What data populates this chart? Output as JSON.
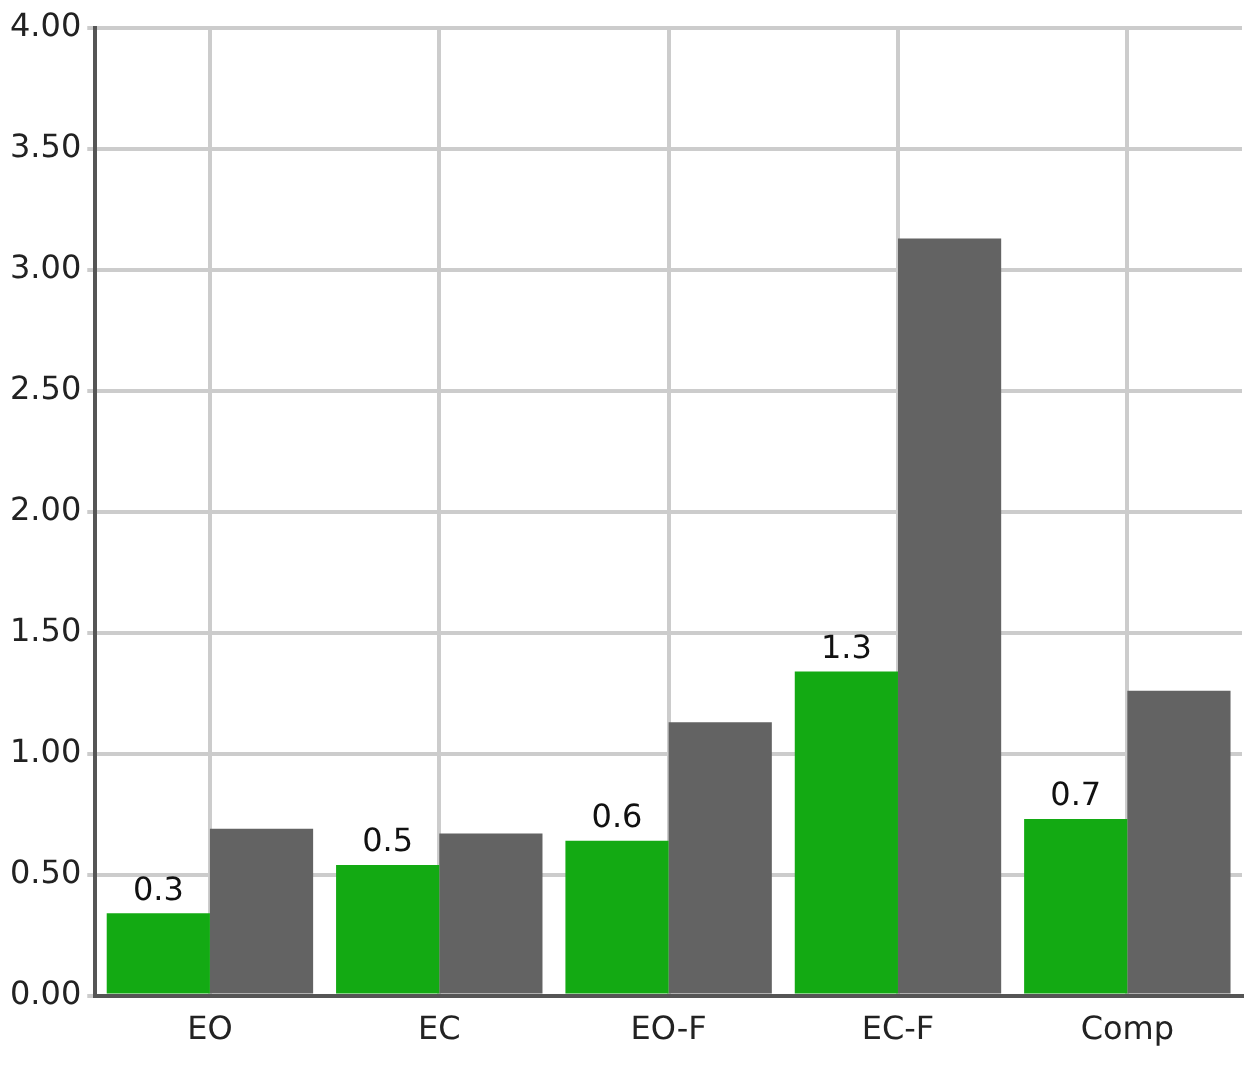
{
  "chart_data": {
    "type": "bar",
    "categories": [
      "EO",
      "EC",
      "EO-F",
      "EC-F",
      "Comp"
    ],
    "series": [
      {
        "color": "#13aa13",
        "values": [
          0.34,
          0.54,
          0.64,
          1.34,
          0.73
        ],
        "value_labels": [
          "0.3",
          "0.5",
          "0.6",
          "1.3",
          "0.7"
        ]
      },
      {
        "color": "#636363",
        "values": [
          0.69,
          0.67,
          1.13,
          3.13,
          1.26
        ]
      }
    ],
    "ylim": [
      0,
      4
    ],
    "yticks": [
      {
        "value": 0,
        "label": "0.00"
      },
      {
        "value": 0.5,
        "label": "0.50"
      },
      {
        "value": 1,
        "label": "1.00"
      },
      {
        "value": 1.5,
        "label": "1.50"
      },
      {
        "value": 2,
        "label": "2.00"
      },
      {
        "value": 2.5,
        "label": "2.50"
      },
      {
        "value": 3,
        "label": "3.00"
      },
      {
        "value": 3.5,
        "label": "3.50"
      },
      {
        "value": 4,
        "label": "4.00"
      }
    ],
    "grid": true,
    "legend": false
  }
}
